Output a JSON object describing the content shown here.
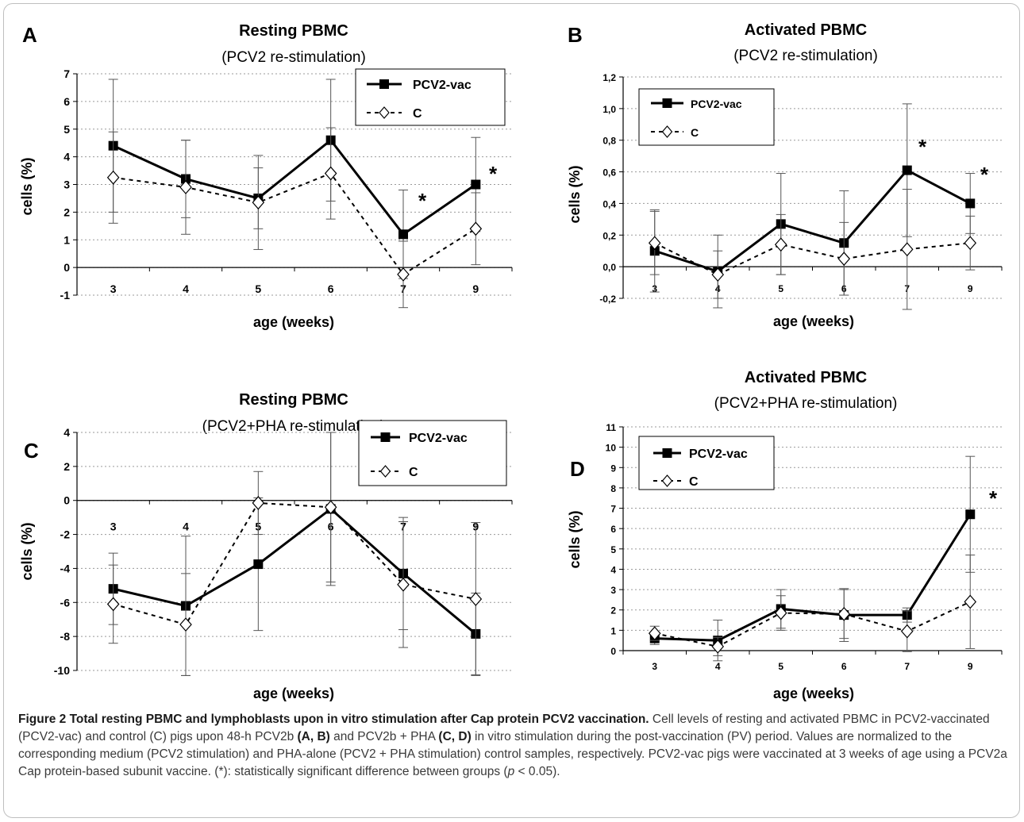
{
  "chart_data": [
    {
      "type": "line",
      "panel": "A",
      "title": "Resting PBMC",
      "subtitle": "(PCV2 re-stimulation)",
      "xlabel": "age (weeks)",
      "ylabel": "cells (%)",
      "categories": [
        "3",
        "4",
        "5",
        "6",
        "7",
        "9"
      ],
      "ylim": [
        -1,
        7
      ],
      "yticks": [
        "-1",
        "0",
        "1",
        "2",
        "3",
        "4",
        "5",
        "6",
        "7"
      ],
      "grid": true,
      "legend": "top-right",
      "series": [
        {
          "name": "PCV2-vac",
          "values": [
            4.4,
            3.2,
            2.5,
            4.6,
            1.2,
            3.0
          ],
          "err": [
            2.4,
            1.4,
            1.1,
            2.2,
            1.6,
            1.7
          ]
        },
        {
          "name": "C",
          "values": [
            3.25,
            2.9,
            2.35,
            3.4,
            -0.25,
            1.4
          ],
          "err": [
            1.65,
            1.7,
            1.7,
            1.65,
            1.2,
            1.3
          ]
        }
      ],
      "significance": [
        "",
        "",
        "",
        "",
        "*",
        "*"
      ]
    },
    {
      "type": "line",
      "panel": "B",
      "title": "Activated PBMC",
      "subtitle": "(PCV2 re-stimulation)",
      "xlabel": "age (weeks)",
      "ylabel": "cells (%)",
      "categories": [
        "3",
        "4",
        "5",
        "6",
        "7",
        "9"
      ],
      "ylim": [
        -0.2,
        1.2
      ],
      "yticks": [
        "-0,2",
        "0,0",
        "0,2",
        "0,4",
        "0,6",
        "0,8",
        "1,0",
        "1,2"
      ],
      "grid": true,
      "legend": "top-left",
      "series": [
        {
          "name": "PCV2-vac",
          "values": [
            0.1,
            -0.03,
            0.27,
            0.15,
            0.61,
            0.4
          ],
          "err": [
            0.26,
            0.23,
            0.32,
            0.33,
            0.42,
            0.19
          ]
        },
        {
          "name": "C",
          "values": [
            0.15,
            -0.05,
            0.14,
            0.05,
            0.11,
            0.15
          ],
          "err": [
            0.2,
            0.15,
            0.19,
            0.23,
            0.38,
            0.17
          ]
        }
      ],
      "significance": [
        "",
        "",
        "",
        "",
        "*",
        "*"
      ]
    },
    {
      "type": "line",
      "panel": "C",
      "title": "Resting PBMC",
      "subtitle": "(PCV2+PHA re-stimulation)",
      "xlabel": "age (weeks)",
      "ylabel": "cells (%)",
      "categories": [
        "3",
        "4",
        "5",
        "6",
        "7",
        "9"
      ],
      "ylim": [
        -10,
        4
      ],
      "yticks": [
        "-10",
        "-8",
        "-6",
        "-4",
        "-2",
        "0",
        "2",
        "4"
      ],
      "grid": true,
      "legend": "top-right",
      "series": [
        {
          "name": "PCV2-vac",
          "values": [
            -5.2,
            -6.2,
            -3.75,
            -0.5,
            -4.3,
            -7.85
          ],
          "err": [
            2.1,
            4.1,
            3.9,
            4.5,
            3.3,
            2.4
          ]
        },
        {
          "name": "C",
          "values": [
            -6.1,
            -7.3,
            -0.15,
            -0.4,
            -4.95,
            -5.8
          ],
          "err": [
            2.3,
            3.0,
            1.85,
            4.4,
            3.7,
            4.5
          ]
        }
      ],
      "significance": [
        "",
        "",
        "",
        "",
        "",
        ""
      ]
    },
    {
      "type": "line",
      "panel": "D",
      "title": "Activated PBMC",
      "subtitle": "(PCV2+PHA re-stimulation)",
      "xlabel": "age (weeks)",
      "ylabel": "cells (%)",
      "categories": [
        "3",
        "4",
        "5",
        "6",
        "7",
        "9"
      ],
      "ylim": [
        0,
        11
      ],
      "yticks": [
        "0",
        "1",
        "2",
        "3",
        "4",
        "5",
        "6",
        "7",
        "8",
        "9",
        "10",
        "11"
      ],
      "grid": true,
      "legend": "top-left",
      "series": [
        {
          "name": "PCV2-vac",
          "values": [
            0.6,
            0.5,
            2.05,
            1.75,
            1.75,
            6.7
          ],
          "err": [
            0.3,
            1.0,
            0.95,
            1.3,
            0.35,
            2.85
          ]
        },
        {
          "name": "C",
          "values": [
            0.85,
            0.2,
            1.85,
            1.8,
            0.95,
            2.4
          ],
          "err": [
            0.35,
            0.45,
            0.85,
            1.2,
            1.0,
            2.3
          ]
        }
      ],
      "significance": [
        "",
        "",
        "",
        "",
        "",
        "*"
      ]
    }
  ],
  "caption": {
    "bold": "Figure 2 Total resting PBMC and lymphoblasts upon in vitro stimulation after Cap protein PCV2 vaccination.",
    "t1": " Cell levels of resting and activated PBMC in PCV2-vaccinated (PCV2-vac) and control (C) pigs upon 48-h PCV2b ",
    "b1": "(A, B)",
    "t2": " and PCV2b + PHA ",
    "b2": "(C, D)",
    "t3": " in vitro stimulation during the post-vaccination (PV) period. Values are normalized to the corresponding medium (PCV2 stimulation) and PHA-alone (PCV2 + PHA stimulation) control samples, respectively. PCV2-vac pigs were vaccinated at 3 weeks of age using a PCV2a Cap protein-based subunit vaccine. (*): statistically significant difference between groups (",
    "i1": "p",
    "t4": " < 0.05)."
  }
}
